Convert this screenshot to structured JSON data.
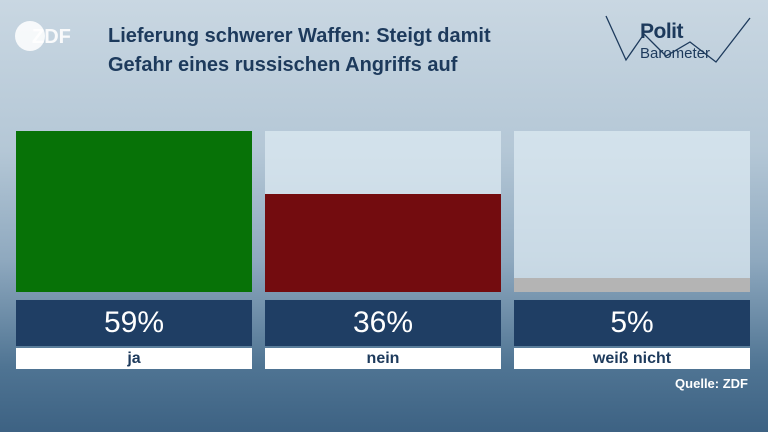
{
  "logo_text": "ZDF",
  "title_lines": [
    "Lieferung schwerer Waffen: Steigt damit",
    "Gefahr eines russischen Angriffs auf"
  ],
  "brand": {
    "line1": "Polit",
    "line2": "Barometer"
  },
  "source": "Quelle: ZDF",
  "colors": {
    "ja": "#077207",
    "nein": "#730c0f",
    "weiss_nicht": "#b4b4b4"
  },
  "chart_data": {
    "type": "bar",
    "categories": [
      "ja",
      "nein",
      "weiß nicht"
    ],
    "values": [
      59,
      36,
      5
    ],
    "value_labels": [
      "59%",
      "36%",
      "5%"
    ],
    "ylim": [
      0,
      59
    ]
  }
}
